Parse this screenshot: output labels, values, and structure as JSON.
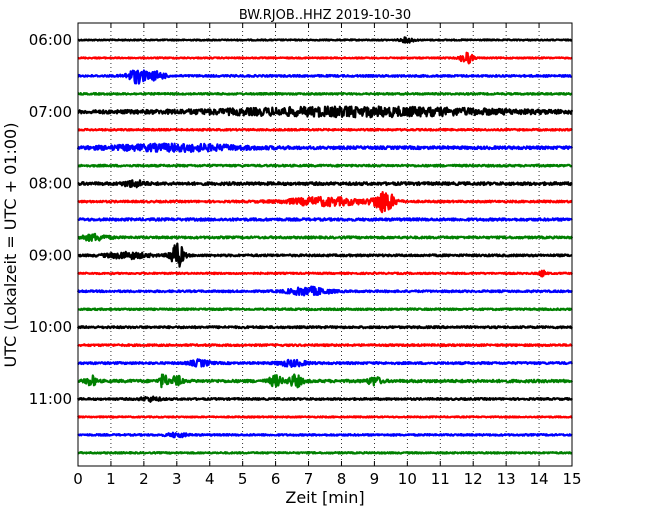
{
  "chart_data": {
    "type": "line",
    "title": "BW.RJOB..HHZ 2019-10-30",
    "xlabel": "Zeit  [min]",
    "ylabel": "UTC (Lokalzeit = UTC + 01:00)",
    "xlim": [
      0,
      15
    ],
    "x_ticks": [
      "0",
      "1",
      "2",
      "3",
      "4",
      "5",
      "6",
      "7",
      "8",
      "9",
      "10",
      "11",
      "12",
      "13",
      "14",
      "15"
    ],
    "y_tick_labels": [
      "06:00",
      "07:00",
      "08:00",
      "09:00",
      "10:00",
      "11:00"
    ],
    "grid": "vertical-dotted",
    "row_colors": [
      "#000000",
      "#ff0000",
      "#0000ff",
      "#008000"
    ],
    "rows": [
      {
        "time": "06:00",
        "color": "#000000",
        "noise": 0.6,
        "events": [
          {
            "t": 10.0,
            "amp": 2.5,
            "width": 0.2
          }
        ]
      },
      {
        "time": "06:15",
        "color": "#ff0000",
        "noise": 0.6,
        "events": [
          {
            "t": 11.8,
            "amp": 6,
            "width": 0.18
          }
        ]
      },
      {
        "time": "06:30",
        "color": "#0000ff",
        "noise": 0.9,
        "events": [
          {
            "t": 1.8,
            "amp": 7,
            "width": 0.3
          },
          {
            "t": 2.4,
            "amp": 4,
            "width": 0.25
          }
        ]
      },
      {
        "time": "06:45",
        "color": "#008000",
        "noise": 0.8,
        "events": []
      },
      {
        "time": "07:00",
        "color": "#000000",
        "noise": 1.5,
        "events": [
          {
            "t": 8.5,
            "amp": 4,
            "width": 4.5
          }
        ]
      },
      {
        "time": "07:15",
        "color": "#ff0000",
        "noise": 0.8,
        "events": []
      },
      {
        "time": "07:30",
        "color": "#0000ff",
        "noise": 1.4,
        "events": [
          {
            "t": 3.0,
            "amp": 3,
            "width": 2
          }
        ]
      },
      {
        "time": "07:45",
        "color": "#008000",
        "noise": 0.9,
        "events": []
      },
      {
        "time": "08:00",
        "color": "#000000",
        "noise": 1.4,
        "events": [
          {
            "t": 1.7,
            "amp": 3,
            "width": 0.3
          }
        ]
      },
      {
        "time": "08:15",
        "color": "#ff0000",
        "noise": 0.9,
        "events": [
          {
            "t": 9.3,
            "amp": 11,
            "width": 0.3
          },
          {
            "t": 7.5,
            "amp": 4,
            "width": 1.2
          }
        ]
      },
      {
        "time": "08:30",
        "color": "#0000ff",
        "noise": 1.2,
        "events": []
      },
      {
        "time": "08:45",
        "color": "#008000",
        "noise": 1.0,
        "events": [
          {
            "t": 0.5,
            "amp": 3,
            "width": 0.4
          }
        ]
      },
      {
        "time": "09:00",
        "color": "#000000",
        "noise": 1.0,
        "events": [
          {
            "t": 3.0,
            "amp": 13,
            "width": 0.2
          },
          {
            "t": 1.5,
            "amp": 3,
            "width": 0.6
          }
        ]
      },
      {
        "time": "09:15",
        "color": "#ff0000",
        "noise": 0.7,
        "events": [
          {
            "t": 14.1,
            "amp": 3,
            "width": 0.1
          }
        ]
      },
      {
        "time": "09:30",
        "color": "#0000ff",
        "noise": 0.9,
        "events": [
          {
            "t": 7.0,
            "amp": 4,
            "width": 0.6
          }
        ]
      },
      {
        "time": "09:45",
        "color": "#008000",
        "noise": 0.8,
        "events": []
      },
      {
        "time": "10:00",
        "color": "#000000",
        "noise": 1.0,
        "events": []
      },
      {
        "time": "10:15",
        "color": "#ff0000",
        "noise": 0.9,
        "events": []
      },
      {
        "time": "10:30",
        "color": "#0000ff",
        "noise": 1.0,
        "events": [
          {
            "t": 3.7,
            "amp": 3,
            "width": 0.3
          },
          {
            "t": 6.5,
            "amp": 3,
            "width": 0.4
          }
        ]
      },
      {
        "time": "10:45",
        "color": "#008000",
        "noise": 1.3,
        "events": [
          {
            "t": 0.4,
            "amp": 5,
            "width": 0.15
          },
          {
            "t": 2.6,
            "amp": 7,
            "width": 0.12
          },
          {
            "t": 3.0,
            "amp": 5,
            "width": 0.15
          },
          {
            "t": 6.0,
            "amp": 5,
            "width": 0.2
          },
          {
            "t": 6.6,
            "amp": 6,
            "width": 0.2
          },
          {
            "t": 9.0,
            "amp": 4,
            "width": 0.2
          }
        ]
      },
      {
        "time": "11:00",
        "color": "#000000",
        "noise": 0.9,
        "events": [
          {
            "t": 2.2,
            "amp": 2,
            "width": 0.3
          }
        ]
      },
      {
        "time": "11:15",
        "color": "#ff0000",
        "noise": 0.6,
        "events": []
      },
      {
        "time": "11:30",
        "color": "#0000ff",
        "noise": 0.8,
        "events": [
          {
            "t": 3.0,
            "amp": 2,
            "width": 0.3
          }
        ]
      },
      {
        "time": "11:45",
        "color": "#008000",
        "noise": 0.7,
        "events": []
      }
    ]
  }
}
